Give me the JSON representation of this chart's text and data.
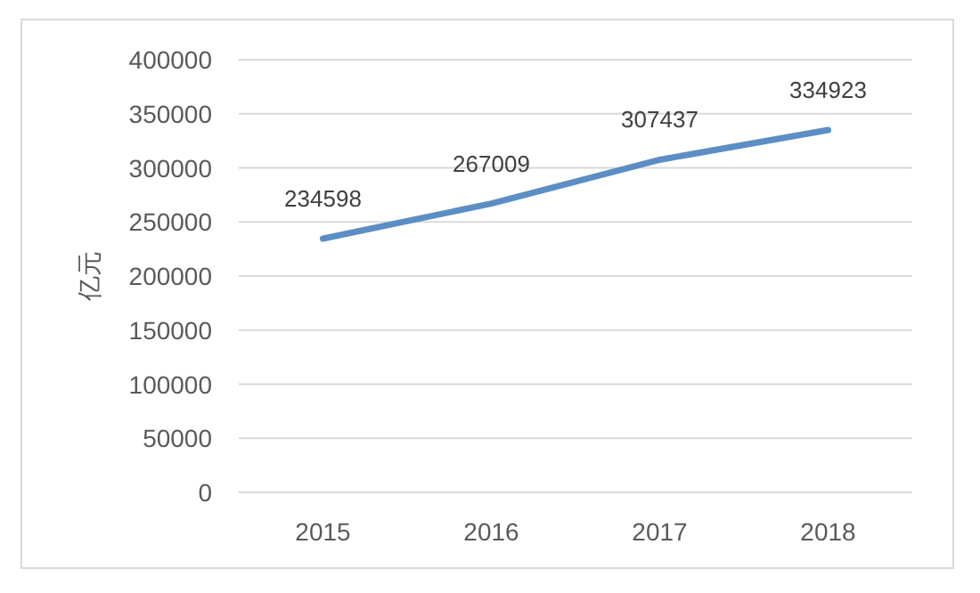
{
  "chart_data": {
    "type": "line",
    "ylabel": "亿元",
    "categories": [
      "2015",
      "2016",
      "2017",
      "2018"
    ],
    "series": [
      {
        "color": "#5b8ec4",
        "values": [
          234598,
          267009,
          307437,
          334923
        ]
      }
    ],
    "ylim": [
      0,
      400000
    ],
    "yticks": [
      0,
      50000,
      100000,
      150000,
      200000,
      250000,
      300000,
      350000,
      400000
    ],
    "grid": "y",
    "data_labels": true,
    "marker": "none",
    "line_style": "solid"
  }
}
